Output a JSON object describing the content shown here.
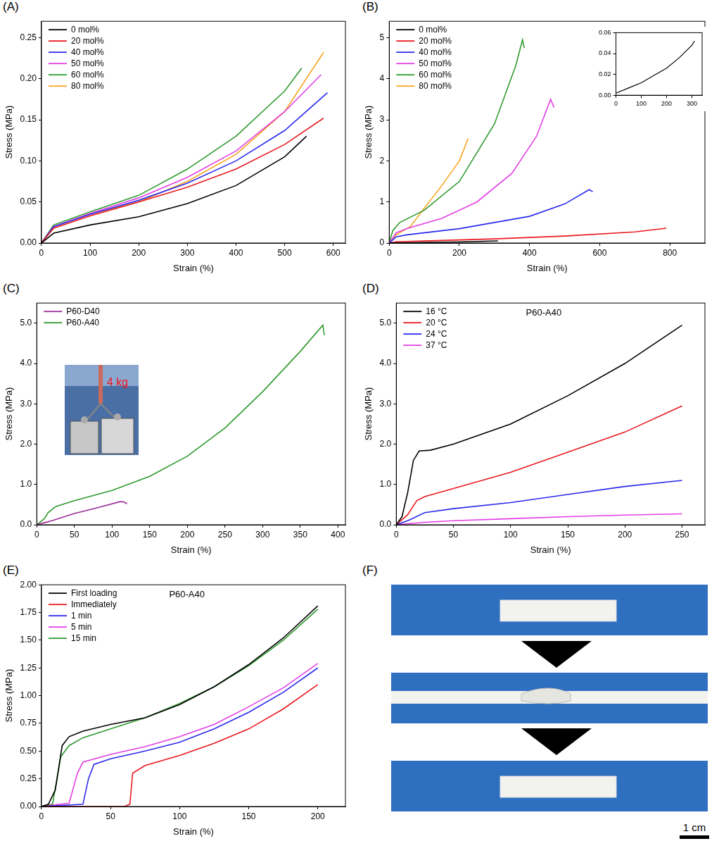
{
  "chart_data": [
    {
      "panel": "(A)",
      "type": "line",
      "x_label": "Strain (%)",
      "y_label": "Stress (MPa)",
      "legend": "upper left",
      "grid": false,
      "xlim": [
        0,
        625
      ],
      "xticks": [
        0,
        100,
        200,
        300,
        400,
        500,
        600
      ],
      "ylim": [
        0,
        0.27
      ],
      "yticks": [
        {
          "value": 0,
          "label": "0.00"
        },
        0.05,
        {
          "value": 0.1,
          "label": "0.10"
        },
        0.15,
        {
          "value": 0.2,
          "label": "0.20"
        },
        0.25
      ],
      "series": [
        {
          "name": "0 mol%",
          "color": "#000000",
          "x": [
            0,
            25,
            100,
            200,
            300,
            400,
            500,
            545
          ],
          "values": [
            0,
            0.012,
            0.022,
            0.032,
            0.048,
            0.07,
            0.105,
            0.13
          ]
        },
        {
          "name": "20 mol%",
          "color": "#e8191f",
          "x": [
            0,
            25,
            100,
            200,
            300,
            400,
            500,
            580
          ],
          "values": [
            0,
            0.018,
            0.033,
            0.05,
            0.068,
            0.09,
            0.12,
            0.152
          ]
        },
        {
          "name": "40 mol%",
          "color": "#2a2aed",
          "x": [
            0,
            25,
            100,
            200,
            300,
            400,
            500,
            588
          ],
          "values": [
            0,
            0.02,
            0.035,
            0.052,
            0.073,
            0.1,
            0.137,
            0.183
          ]
        },
        {
          "name": "50 mol%",
          "color": "#e43ee6",
          "x": [
            0,
            25,
            100,
            200,
            300,
            400,
            500,
            575
          ],
          "values": [
            0,
            0.02,
            0.036,
            0.055,
            0.08,
            0.112,
            0.16,
            0.205
          ]
        },
        {
          "name": "60 mol%",
          "color": "#2e9a2e",
          "x": [
            0,
            25,
            100,
            200,
            300,
            400,
            500,
            535
          ],
          "values": [
            0,
            0.022,
            0.038,
            0.058,
            0.09,
            0.13,
            0.185,
            0.213
          ]
        },
        {
          "name": "80 mol%",
          "color": "#f5a623",
          "x": [
            0,
            25,
            100,
            200,
            300,
            400,
            500,
            580
          ],
          "values": [
            0,
            0.02,
            0.035,
            0.05,
            0.075,
            0.108,
            0.16,
            0.232
          ]
        }
      ]
    },
    {
      "panel": "(B)",
      "type": "line",
      "x_label": "Strain (%)",
      "y_label": "Stress (MPa)",
      "legend": "upper left",
      "grid": false,
      "xlim": [
        0,
        900
      ],
      "xticks": [
        0,
        200,
        400,
        600,
        800
      ],
      "ylim": [
        0,
        5.4
      ],
      "yticks": [
        0,
        1,
        2,
        3,
        4,
        5
      ],
      "series": [
        {
          "name": "0 mol%",
          "color": "#000000",
          "x": [
            0,
            100,
            200,
            310
          ],
          "values": [
            0,
            0.012,
            0.026,
            0.052
          ]
        },
        {
          "name": "20 mol%",
          "color": "#e8191f",
          "x": [
            0,
            20,
            100,
            300,
            500,
            700,
            790
          ],
          "values": [
            0,
            0.03,
            0.05,
            0.1,
            0.17,
            0.27,
            0.36
          ]
        },
        {
          "name": "40 mol%",
          "color": "#2a2aed",
          "x": [
            0,
            20,
            50,
            200,
            400,
            500,
            570,
            580
          ],
          "values": [
            0,
            0.15,
            0.2,
            0.35,
            0.65,
            0.95,
            1.3,
            1.25
          ]
        },
        {
          "name": "50 mol%",
          "color": "#e43ee6",
          "x": [
            0,
            20,
            50,
            150,
            250,
            350,
            420,
            460,
            470
          ],
          "values": [
            0,
            0.25,
            0.35,
            0.6,
            1.0,
            1.7,
            2.6,
            3.5,
            3.3
          ]
        },
        {
          "name": "60 mol%",
          "color": "#2e9a2e",
          "x": [
            0,
            10,
            30,
            100,
            200,
            300,
            360,
            380,
            385
          ],
          "values": [
            0,
            0.3,
            0.5,
            0.8,
            1.5,
            2.9,
            4.3,
            4.95,
            4.75
          ]
        },
        {
          "name": "80 mol%",
          "color": "#f5a623",
          "x": [
            0,
            20,
            60,
            100,
            150,
            200,
            225
          ],
          "values": [
            0,
            0.2,
            0.4,
            0.85,
            1.4,
            2.0,
            2.55
          ]
        }
      ],
      "inset": {
        "type": "line",
        "grid": false,
        "xlim": [
          0,
          340
        ],
        "xticks": [
          0,
          100,
          200,
          300
        ],
        "ylim": [
          0,
          0.06
        ],
        "yticks": [
          {
            "value": 0,
            "label": "0.00"
          },
          0.02,
          0.04,
          0.06
        ],
        "series": [
          {
            "color": "#000000",
            "x": [
              0,
              50,
              100,
              150,
              200,
              250,
              300,
              310
            ],
            "values": [
              0.002,
              0.007,
              0.012,
              0.019,
              0.026,
              0.036,
              0.048,
              0.052
            ]
          }
        ]
      }
    },
    {
      "panel": "(C)",
      "type": "line",
      "x_label": "Strain (%)",
      "y_label": "Stress (MPa)",
      "legend": "upper left",
      "grid": false,
      "xlim": [
        0,
        410
      ],
      "xticks": [
        0,
        50,
        100,
        150,
        200,
        250,
        300,
        350,
        400
      ],
      "ylim": [
        0,
        5.5
      ],
      "yticks": [
        {
          "value": 0,
          "label": "0.0"
        },
        {
          "value": 1,
          "label": "1.0"
        },
        {
          "value": 2,
          "label": "2.0"
        },
        {
          "value": 3,
          "label": "3.0"
        },
        {
          "value": 4,
          "label": "4.0"
        },
        {
          "value": 5,
          "label": "5.0"
        }
      ],
      "inset_photo": {
        "text": "4 kg"
      },
      "series": [
        {
          "name": "P60-D40",
          "color": "#9b2d9b",
          "x": [
            0,
            10,
            20,
            50,
            80,
            110,
            115,
            120
          ],
          "values": [
            0,
            0.05,
            0.1,
            0.28,
            0.42,
            0.57,
            0.57,
            0.52
          ]
        },
        {
          "name": "P60-A40",
          "color": "#2e9a2e",
          "x": [
            0,
            10,
            15,
            25,
            50,
            100,
            150,
            200,
            250,
            300,
            350,
            380,
            382
          ],
          "values": [
            0,
            0.15,
            0.3,
            0.45,
            0.6,
            0.85,
            1.2,
            1.7,
            2.4,
            3.3,
            4.3,
            4.95,
            4.7
          ]
        }
      ]
    },
    {
      "panel": "(D)",
      "type": "line",
      "x_label": "Strain (%)",
      "y_label": "Stress (MPa)",
      "legend": "upper left",
      "grid": false,
      "annotations": [
        "P60-A40"
      ],
      "xlim": [
        0,
        270
      ],
      "xticks": [
        0,
        50,
        100,
        150,
        200,
        250
      ],
      "ylim": [
        0,
        5.5
      ],
      "yticks": [
        {
          "value": 0,
          "label": "0.0"
        },
        {
          "value": 1,
          "label": "1.0"
        },
        {
          "value": 2,
          "label": "2.0"
        },
        {
          "value": 3,
          "label": "3.0"
        },
        {
          "value": 4,
          "label": "4.0"
        },
        {
          "value": 5,
          "label": "5.0"
        }
      ],
      "series": [
        {
          "name": "16 °C",
          "color": "#000000",
          "x": [
            0,
            5,
            10,
            15,
            20,
            30,
            50,
            100,
            150,
            200,
            250
          ],
          "values": [
            0,
            0.2,
            0.8,
            1.6,
            1.83,
            1.85,
            2.0,
            2.5,
            3.2,
            4.0,
            4.95
          ]
        },
        {
          "name": "20 °C",
          "color": "#e8191f",
          "x": [
            0,
            10,
            18,
            25,
            50,
            100,
            150,
            200,
            250
          ],
          "values": [
            0,
            0.25,
            0.6,
            0.7,
            0.9,
            1.3,
            1.8,
            2.3,
            2.95
          ]
        },
        {
          "name": "24 °C",
          "color": "#2a2aed",
          "x": [
            0,
            10,
            25,
            50,
            100,
            150,
            200,
            250
          ],
          "values": [
            0,
            0.1,
            0.3,
            0.4,
            0.55,
            0.75,
            0.95,
            1.1
          ]
        },
        {
          "name": "37 °C",
          "color": "#e43ee6",
          "x": [
            0,
            25,
            50,
            100,
            150,
            200,
            250
          ],
          "values": [
            0,
            0.06,
            0.1,
            0.15,
            0.2,
            0.24,
            0.27
          ]
        }
      ]
    },
    {
      "panel": "(E)",
      "type": "line",
      "x_label": "Strain (%)",
      "y_label": "Stress (MPa)",
      "legend": "upper left",
      "grid": false,
      "annotations": [
        "P60-A40"
      ],
      "xlim": [
        0,
        220
      ],
      "xticks": [
        0,
        50,
        100,
        150,
        200
      ],
      "ylim": [
        0,
        2.0
      ],
      "yticks": [
        {
          "value": 0,
          "label": "0.00"
        },
        0.25,
        {
          "value": 0.5,
          "label": "0.50"
        },
        0.75,
        {
          "value": 1,
          "label": "1.00"
        },
        1.25,
        {
          "value": 1.5,
          "label": "1.50"
        },
        1.75,
        {
          "value": 2,
          "label": "2.00"
        }
      ],
      "series": [
        {
          "name": "First loading",
          "color": "#000000",
          "x": [
            0,
            5,
            10,
            15,
            20,
            30,
            50,
            75,
            100,
            125,
            150,
            175,
            200
          ],
          "values": [
            0,
            0.02,
            0.15,
            0.55,
            0.63,
            0.68,
            0.74,
            0.8,
            0.92,
            1.08,
            1.28,
            1.52,
            1.81
          ]
        },
        {
          "name": "Immediately",
          "color": "#e8191f",
          "x": [
            0,
            60,
            64,
            66,
            75,
            100,
            125,
            150,
            175,
            200
          ],
          "values": [
            0,
            0,
            0.02,
            0.3,
            0.37,
            0.46,
            0.57,
            0.7,
            0.88,
            1.1
          ]
        },
        {
          "name": "1 min",
          "color": "#2a2aed",
          "x": [
            0,
            30,
            34,
            38,
            50,
            75,
            100,
            125,
            150,
            175,
            200
          ],
          "values": [
            0,
            0.02,
            0.25,
            0.38,
            0.43,
            0.5,
            0.58,
            0.7,
            0.85,
            1.03,
            1.25
          ]
        },
        {
          "name": "5 min",
          "color": "#e43ee6",
          "x": [
            0,
            20,
            26,
            30,
            50,
            75,
            100,
            125,
            150,
            175,
            200
          ],
          "values": [
            0,
            0.03,
            0.3,
            0.4,
            0.47,
            0.54,
            0.63,
            0.74,
            0.9,
            1.07,
            1.29
          ]
        },
        {
          "name": "15 min",
          "color": "#2e9a2e",
          "x": [
            0,
            8,
            14,
            20,
            30,
            50,
            75,
            100,
            125,
            150,
            175,
            200
          ],
          "values": [
            0,
            0.02,
            0.45,
            0.55,
            0.62,
            0.7,
            0.8,
            0.93,
            1.08,
            1.27,
            1.5,
            1.78
          ]
        }
      ]
    }
  ],
  "photo_panel": {
    "panel": "(F)",
    "scale_bar": "1 cm"
  }
}
